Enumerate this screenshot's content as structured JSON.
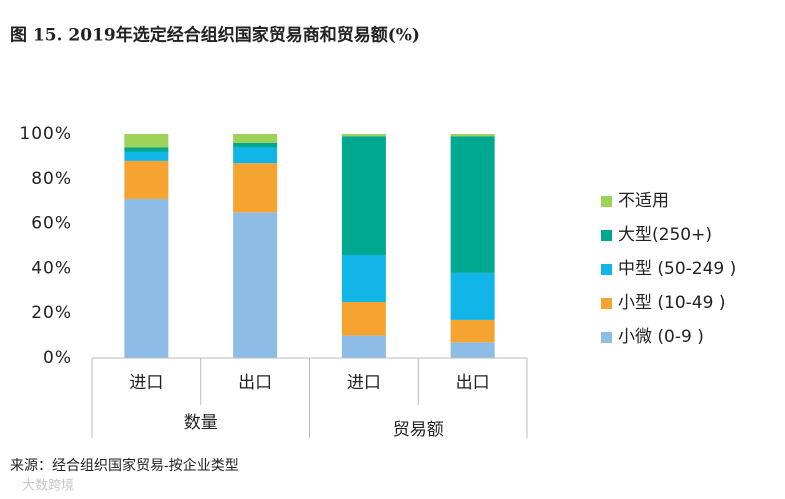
{
  "chart_data": {
    "type": "stacked_bar",
    "title": "图 15. 2019年选定经合组织国家贸易商和贸易额(%)",
    "source": "来源：经合组织国家贸易-按企业类型",
    "watermark": "大数跨境",
    "groups": [
      {
        "label": "数量",
        "categories": [
          "进口",
          "出口"
        ]
      },
      {
        "label": "贸易额",
        "categories": [
          "进口",
          "出口"
        ]
      }
    ],
    "series": [
      {
        "name": "小微 (0-9 )",
        "color": "#8dbde6",
        "values": [
          71,
          65,
          10,
          7
        ]
      },
      {
        "name": "小型 (10-49 )",
        "color": "#f5a431",
        "values": [
          17,
          22,
          15,
          10
        ]
      },
      {
        "name": "中型 (50-249 )",
        "color": "#12b5e8",
        "values": [
          4,
          7,
          21,
          21
        ]
      },
      {
        "name": "大型(250+)",
        "color": "#00a88f",
        "values": [
          2,
          2,
          53,
          61
        ]
      },
      {
        "name": "不适用",
        "color": "#9dd15a",
        "values": [
          6,
          4,
          1,
          1
        ]
      }
    ],
    "ylim": [
      0,
      100
    ],
    "yticks": [
      {
        "value": 0,
        "label": "0%"
      },
      {
        "value": 20,
        "label": "20%"
      },
      {
        "value": 40,
        "label": "40%"
      },
      {
        "value": 60,
        "label": "60%"
      },
      {
        "value": 80,
        "label": "80%"
      },
      {
        "value": 100,
        "label": "100%"
      }
    ]
  }
}
